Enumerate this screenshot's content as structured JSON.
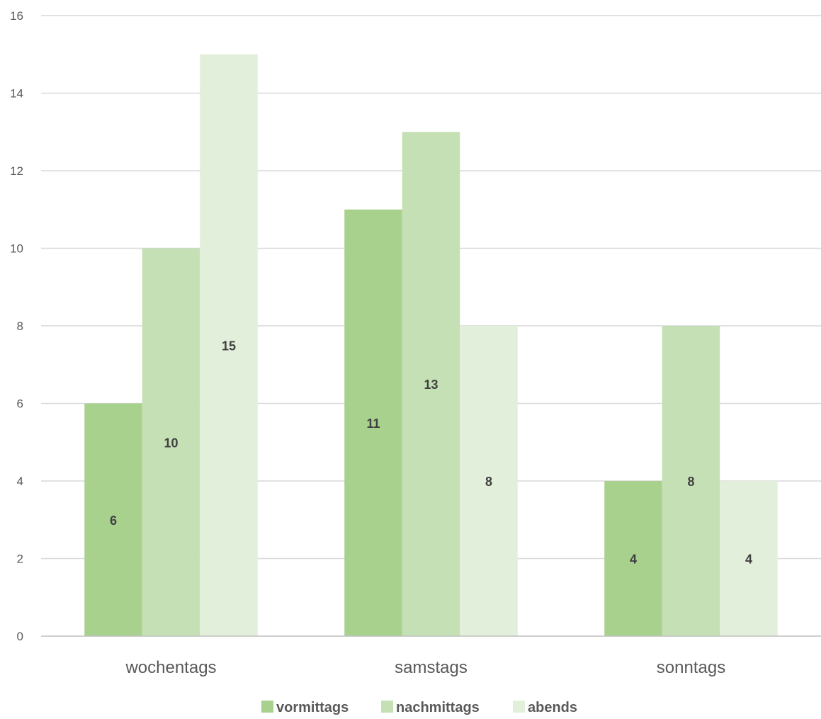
{
  "chart_data": {
    "type": "bar",
    "categories": [
      "wochentags",
      "samstags",
      "sonntags"
    ],
    "series": [
      {
        "name": "vormittags",
        "values": [
          6,
          11,
          4
        ],
        "color": "#a9d18e"
      },
      {
        "name": "nachmittags",
        "values": [
          10,
          13,
          8
        ],
        "color": "#c5e0b4"
      },
      {
        "name": "abends",
        "values": [
          15,
          8,
          4
        ],
        "color": "#e2efda"
      }
    ],
    "ylim": [
      0,
      16
    ],
    "yticks": [
      0,
      2,
      4,
      6,
      8,
      10,
      12,
      14,
      16
    ],
    "title": "",
    "xlabel": "",
    "ylabel": "",
    "grid": true,
    "legend_position": "bottom",
    "data_labels": true
  }
}
